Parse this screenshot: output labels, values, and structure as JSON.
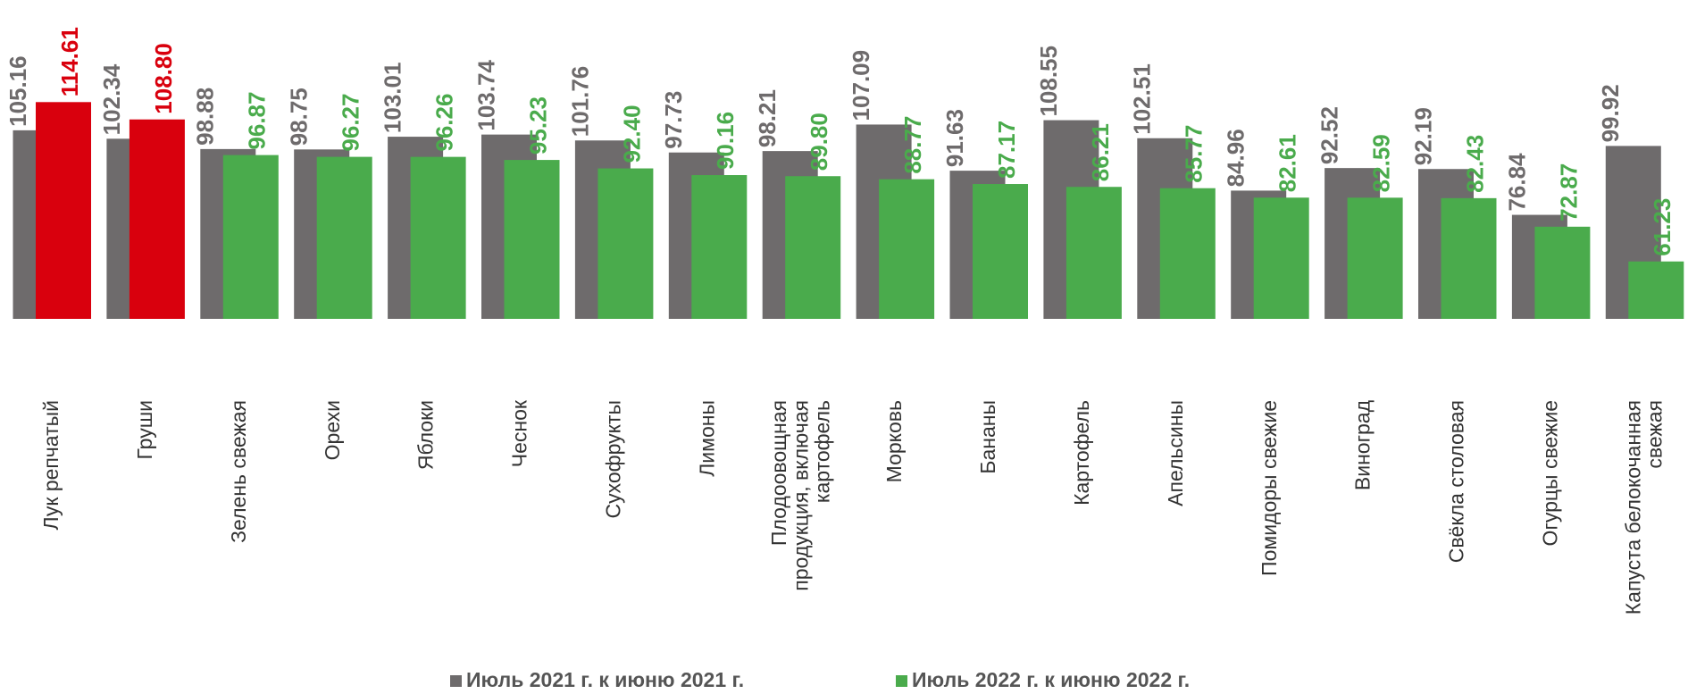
{
  "chart_data": {
    "type": "bar",
    "categories": [
      "Лук репчатый",
      "Груши",
      "Зелень свежая",
      "Орехи",
      "Яблоки",
      "Чеснок",
      "Сухофрукты",
      "Лимоны",
      "Плодоовощная продукция, включая картофель",
      "Морковь",
      "Бананы",
      "Картофель",
      "Апельсины",
      "Помидоры свежие",
      "Виноград",
      "Свёкла столовая",
      "Огурцы свежие",
      "Капуста белокочанная свежая"
    ],
    "series": [
      {
        "name": "Июль 2021 г. к июню 2021 г.",
        "color": "#6e6b6c",
        "values": [
          105.16,
          102.34,
          98.88,
          98.75,
          103.01,
          103.74,
          101.76,
          97.73,
          98.21,
          107.09,
          91.63,
          108.55,
          102.51,
          84.96,
          92.52,
          92.19,
          76.84,
          99.92
        ]
      },
      {
        "name": "Июль 2022 г. к июню 2022 г.",
        "color": "#4aab4c",
        "colors": [
          "#d9000d",
          "#d9000d",
          "#4aab4c",
          "#4aab4c",
          "#4aab4c",
          "#4aab4c",
          "#4aab4c",
          "#4aab4c",
          "#4aab4c",
          "#4aab4c",
          "#4aab4c",
          "#4aab4c",
          "#4aab4c",
          "#4aab4c",
          "#4aab4c",
          "#4aab4c",
          "#4aab4c",
          "#4aab4c"
        ],
        "values": [
          114.61,
          108.8,
          96.87,
          96.27,
          96.26,
          95.23,
          92.4,
          90.16,
          89.8,
          88.77,
          87.17,
          86.21,
          85.77,
          82.61,
          82.59,
          82.43,
          72.87,
          61.23
        ],
        "value_labels": [
          "114.61",
          "108.80",
          "96.87",
          "96.27",
          "96.26",
          "95.23",
          "92.40",
          "90.16",
          "89.80",
          "88.77",
          "87.17",
          "86.21",
          "85.77",
          "82.61",
          "82.59",
          "82.43",
          "72.87",
          "61.23"
        ]
      }
    ],
    "ylim": [
      42,
      115
    ],
    "legend": "bottom"
  }
}
